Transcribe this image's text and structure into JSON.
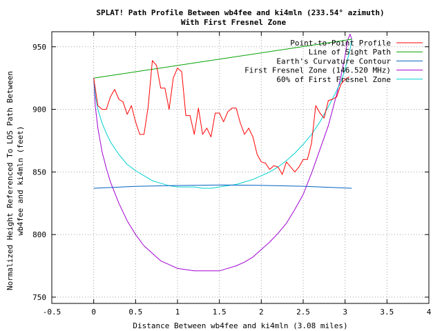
{
  "chart_data": {
    "type": "line",
    "title": "SPLAT! Path Profile Between wb4fee and ki4mln (233.54° azimuth)",
    "subtitle": "With First Fresnel Zone",
    "xlabel": "Distance Between wb4fee and ki4mln (3.08 miles)",
    "ylabel_line1": "Normalized Height Referenced To LOS Path Between",
    "ylabel_line2": "wb4fee and ki4mln (feet)",
    "xlim": [
      -0.5,
      4
    ],
    "ylim": [
      745,
      962
    ],
    "x_ticks": [
      -0.5,
      0,
      0.5,
      1,
      1.5,
      2,
      2.5,
      3,
      3.5,
      4
    ],
    "x_tick_labels": [
      "-0.5",
      "0",
      "0.5",
      "1",
      "1.5",
      "2",
      "2.5",
      "3",
      "3.5",
      "4"
    ],
    "y_ticks": [
      750,
      800,
      850,
      900,
      950
    ],
    "y_tick_labels": [
      "750",
      "800",
      "850",
      "900",
      "950"
    ],
    "grid": true,
    "legend_position": "top-right",
    "series": [
      {
        "name": "Point-to-Point Profile",
        "color": "#ff0000",
        "x": [
          0,
          0.05,
          0.1,
          0.15,
          0.2,
          0.25,
          0.3,
          0.35,
          0.4,
          0.45,
          0.5,
          0.55,
          0.6,
          0.65,
          0.7,
          0.75,
          0.8,
          0.85,
          0.9,
          0.95,
          1.0,
          1.05,
          1.1,
          1.15,
          1.2,
          1.25,
          1.3,
          1.35,
          1.4,
          1.45,
          1.5,
          1.55,
          1.6,
          1.65,
          1.7,
          1.75,
          1.8,
          1.85,
          1.9,
          1.95,
          2.0,
          2.05,
          2.1,
          2.15,
          2.2,
          2.25,
          2.3,
          2.35,
          2.4,
          2.45,
          2.5,
          2.55,
          2.6,
          2.65,
          2.7,
          2.75,
          2.8,
          2.85,
          2.9,
          2.95,
          3.0,
          3.05
        ],
        "y": [
          925,
          903,
          900,
          900,
          910,
          916,
          908,
          906,
          896,
          903,
          890,
          880,
          880,
          902,
          939,
          935,
          917,
          917,
          900,
          925,
          933,
          930,
          895,
          895,
          880,
          901,
          880,
          885,
          878,
          897,
          897,
          890,
          898,
          901,
          901,
          889,
          880,
          885,
          878,
          864,
          858,
          857,
          852,
          855,
          854,
          848,
          858,
          854,
          850,
          854,
          860,
          860,
          873,
          903,
          897,
          893,
          907,
          908,
          910,
          920,
          924,
          926
        ]
      },
      {
        "name": "Line of Sight Path",
        "color": "#00a000",
        "x": [
          0,
          3.08
        ],
        "y": [
          925,
          956
        ]
      },
      {
        "name": "Earth's Curvature Contour",
        "color": "#0060c0",
        "x": [
          0,
          0.5,
          1.0,
          1.54,
          2.0,
          2.5,
          3.08
        ],
        "y": [
          837,
          838.5,
          839.2,
          839.6,
          839.3,
          838.6,
          837
        ]
      },
      {
        "name": "First Fresnel Zone (146.520 MHz)",
        "color": "#a000d0",
        "x": [
          0.0,
          0.02,
          0.05,
          0.1,
          0.15,
          0.2,
          0.3,
          0.4,
          0.5,
          0.6,
          0.7,
          0.8,
          0.9,
          1.0,
          1.1,
          1.2,
          1.3,
          1.4,
          1.5,
          1.6,
          1.7,
          1.8,
          1.9,
          2.0,
          2.1,
          2.2,
          2.3,
          2.4,
          2.5,
          2.6,
          2.7,
          2.8,
          2.9,
          2.95,
          3.0,
          3.03,
          3.06,
          3.08
        ],
        "y": [
          925,
          902,
          885,
          866,
          853,
          842,
          825,
          811,
          800,
          791,
          785,
          779,
          776,
          773,
          772,
          771,
          771,
          771,
          771,
          773,
          775,
          778,
          782,
          788,
          794,
          801,
          809,
          820,
          832,
          849,
          868,
          887,
          912,
          926,
          943,
          955,
          960,
          956
        ]
      },
      {
        "name": "60% of First Fresnel Zone",
        "color": "#00d0d0",
        "x": [
          0.0,
          0.02,
          0.05,
          0.1,
          0.15,
          0.2,
          0.3,
          0.4,
          0.5,
          0.6,
          0.7,
          0.8,
          0.9,
          1.0,
          1.1,
          1.2,
          1.3,
          1.4,
          1.5,
          1.6,
          1.7,
          1.8,
          1.9,
          2.0,
          2.1,
          2.2,
          2.3,
          2.4,
          2.5,
          2.6,
          2.7,
          2.8,
          2.9,
          2.95,
          3.0,
          3.03,
          3.06,
          3.08
        ],
        "y": [
          925,
          911,
          900,
          889,
          881,
          874,
          864,
          856,
          851,
          847,
          843,
          841,
          839,
          838,
          838,
          838,
          837,
          837,
          838,
          839,
          840,
          842,
          844,
          847,
          850,
          854,
          859,
          865,
          872,
          880,
          890,
          902,
          915,
          922,
          932,
          940,
          948,
          956
        ]
      }
    ]
  }
}
